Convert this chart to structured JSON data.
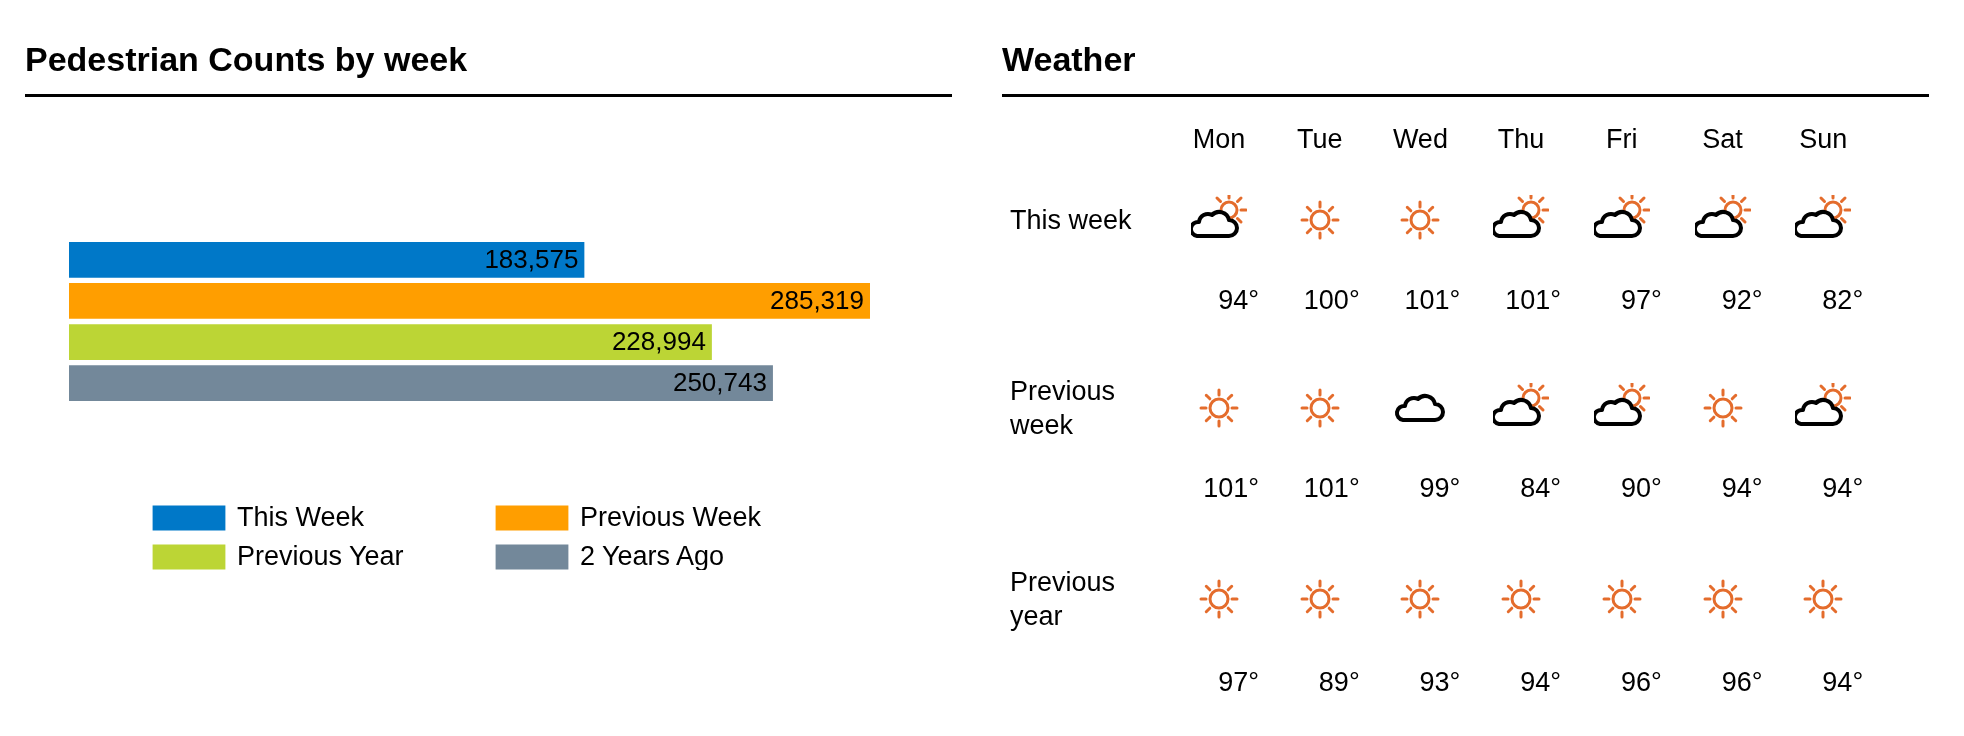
{
  "chart_data": [
    {
      "type": "bar",
      "orientation": "horizontal",
      "title": "Pedestrian Counts by week",
      "categories": [
        null
      ],
      "legend": "bottom",
      "series": [
        {
          "name": "This Week",
          "color": "#0078c8",
          "values": [
            183575
          ],
          "value_labels": [
            "183,575"
          ]
        },
        {
          "name": "Previous Week",
          "color": "#ff9e00",
          "values": [
            285319
          ],
          "value_labels": [
            "285,319"
          ]
        },
        {
          "name": "Previous Year",
          "color": "#bcd535",
          "values": [
            228994
          ],
          "value_labels": [
            "228,994"
          ]
        },
        {
          "name": "2 Years Ago",
          "color": "#73889a",
          "values": [
            250743
          ],
          "value_labels": [
            "250,743"
          ]
        }
      ]
    },
    {
      "type": "other",
      "title": "Weather",
      "categories": [
        "Mon",
        "Tue",
        "Wed",
        "Thu",
        "Fri",
        "Sat",
        "Sun"
      ],
      "y_categories": [
        "This week",
        "Previous week",
        "Previous year"
      ],
      "cell_labels": [
        [
          "94°",
          "100°",
          "101°",
          "101°",
          "97°",
          "92°",
          "82°"
        ],
        [
          "101°",
          "101°",
          "99°",
          "84°",
          "90°",
          "94°",
          "94°"
        ],
        [
          "97°",
          "89°",
          "93°",
          "94°",
          "96°",
          "96°",
          "94°"
        ]
      ]
    }
  ]
}
